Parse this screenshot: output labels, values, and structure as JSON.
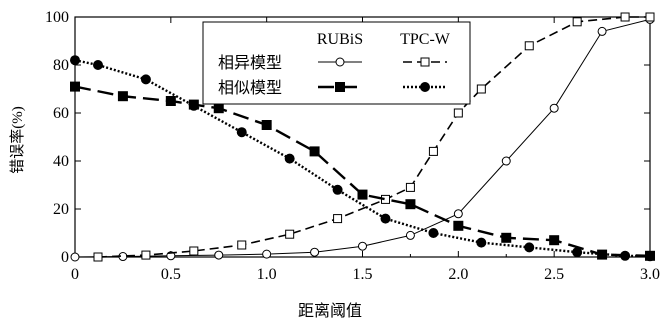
{
  "chart_data": {
    "type": "line",
    "title": "",
    "xlabel": "距离阈值",
    "ylabel": "错误率(%)",
    "xlim": [
      0,
      3.0
    ],
    "ylim": [
      0,
      100
    ],
    "x_ticks": [
      0,
      0.5,
      1.0,
      1.5,
      2.0,
      2.5,
      3.0
    ],
    "x_tick_labels": [
      "0",
      "0.5",
      "1.0",
      "1.5",
      "2.0",
      "2.5",
      "3.0"
    ],
    "y_ticks": [
      0,
      20,
      40,
      60,
      80,
      100
    ],
    "y_tick_labels": [
      "0",
      "20",
      "40",
      "60",
      "80",
      "100"
    ],
    "legend": {
      "placement": "top-center",
      "col_headers": [
        "RUBiS",
        "TPC-W"
      ],
      "row_labels": [
        "相异模型",
        "相似模型"
      ]
    },
    "series": [
      {
        "group": "RUBiS",
        "model": "相异模型",
        "line_style": "solid",
        "marker": "open-circle",
        "points": [
          [
            0,
            0
          ],
          [
            0.25,
            0.2
          ],
          [
            0.5,
            0.5
          ],
          [
            0.75,
            0.8
          ],
          [
            1.0,
            1.2
          ],
          [
            1.25,
            2
          ],
          [
            1.5,
            4.5
          ],
          [
            1.75,
            9
          ],
          [
            2.0,
            18
          ],
          [
            2.25,
            40
          ],
          [
            2.5,
            62
          ],
          [
            2.75,
            94
          ],
          [
            3.0,
            99
          ]
        ]
      },
      {
        "group": "TPC-W",
        "model": "相异模型",
        "line_style": "dashed",
        "marker": "open-square",
        "points": [
          [
            0.12,
            0
          ],
          [
            0.37,
            0.8
          ],
          [
            0.62,
            2.5
          ],
          [
            0.87,
            5
          ],
          [
            1.12,
            9.5
          ],
          [
            1.37,
            16
          ],
          [
            1.62,
            24
          ],
          [
            1.75,
            29
          ],
          [
            1.87,
            44
          ],
          [
            2.0,
            60
          ],
          [
            2.12,
            70
          ],
          [
            2.37,
            88
          ],
          [
            2.62,
            98
          ],
          [
            2.87,
            100
          ],
          [
            3.0,
            100
          ]
        ]
      },
      {
        "group": "RUBiS",
        "model": "相似模型",
        "line_style": "long-dash",
        "marker": "filled-square",
        "points": [
          [
            0,
            71
          ],
          [
            0.25,
            67
          ],
          [
            0.5,
            65
          ],
          [
            0.62,
            63.5
          ],
          [
            0.75,
            62
          ],
          [
            1.0,
            55
          ],
          [
            1.25,
            44
          ],
          [
            1.5,
            26
          ],
          [
            1.75,
            22
          ],
          [
            2.0,
            13
          ],
          [
            2.25,
            8
          ],
          [
            2.5,
            7
          ],
          [
            2.75,
            1
          ],
          [
            3.0,
            0.5
          ]
        ]
      },
      {
        "group": "TPC-W",
        "model": "相似模型",
        "line_style": "dotted",
        "marker": "filled-circle",
        "points": [
          [
            0,
            82
          ],
          [
            0.12,
            80
          ],
          [
            0.37,
            74
          ],
          [
            0.62,
            63
          ],
          [
            0.87,
            52
          ],
          [
            1.12,
            41
          ],
          [
            1.37,
            28
          ],
          [
            1.62,
            16
          ],
          [
            1.87,
            10
          ],
          [
            2.12,
            6
          ],
          [
            2.37,
            4
          ],
          [
            2.62,
            2
          ],
          [
            2.87,
            0.5
          ],
          [
            3.0,
            0.3
          ]
        ]
      }
    ]
  }
}
